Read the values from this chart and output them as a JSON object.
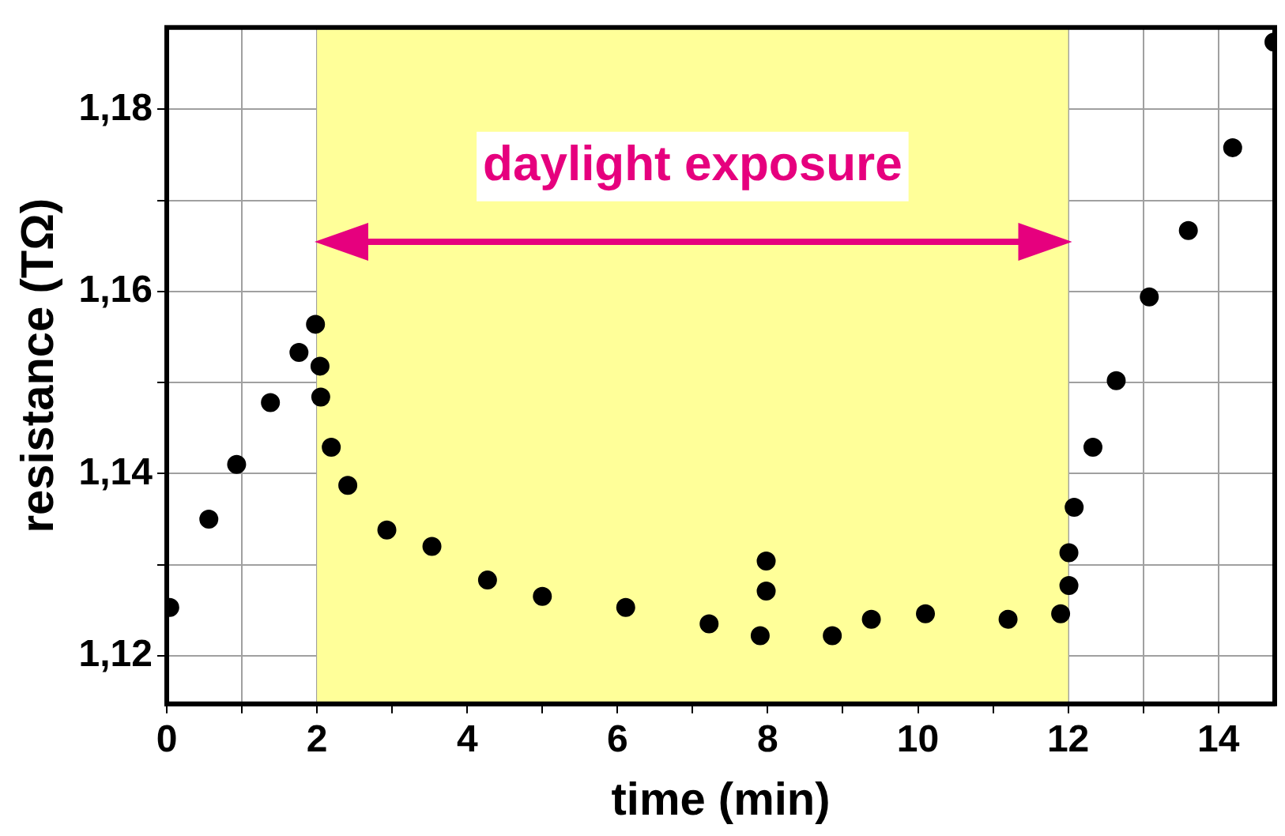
{
  "chart_data": {
    "type": "scatter",
    "xlabel": "time (min)",
    "ylabel": "resistance (TΩ)",
    "xlim": [
      0,
      14.75
    ],
    "ylim": [
      1.1147,
      1.189
    ],
    "xticks": [
      0,
      {
        "value": 1,
        "label": null
      },
      2,
      {
        "value": 3,
        "label": null
      },
      4,
      {
        "value": 5,
        "label": null
      },
      6,
      {
        "value": 7,
        "label": null
      },
      8,
      {
        "value": 9,
        "label": null
      },
      10,
      {
        "value": 11,
        "label": null
      },
      12,
      {
        "value": 13,
        "label": null
      },
      14
    ],
    "yticks": [
      {
        "value": 1.12,
        "label": "1,12"
      },
      {
        "value": 1.13,
        "label": null
      },
      {
        "value": 1.14,
        "label": "1,14"
      },
      {
        "value": 1.15,
        "label": null
      },
      {
        "value": 1.16,
        "label": "1,16"
      },
      {
        "value": 1.17,
        "label": null
      },
      {
        "value": 1.18,
        "label": "1,18"
      }
    ],
    "grid": true,
    "marker": "circle",
    "legend": false,
    "bands": [
      {
        "axis": "x",
        "from": 2,
        "to": 12,
        "label": "daylight exposure",
        "color": "#ffff99"
      }
    ],
    "series": [
      {
        "color": "#000000",
        "x": [
          0.04,
          0.56,
          0.93,
          1.38,
          1.76,
          1.98,
          2.04,
          2.05,
          2.19,
          2.41,
          2.93,
          3.53,
          4.27,
          5.0,
          6.11,
          7.22,
          7.9,
          7.98,
          7.98,
          8.86,
          9.38,
          10.1,
          11.2,
          11.9,
          12.01,
          12.01,
          12.08,
          12.33,
          12.64,
          13.08,
          13.6,
          14.19,
          14.74
        ],
        "values": [
          1.1253,
          1.135,
          1.141,
          1.1478,
          1.1533,
          1.1564,
          1.1518,
          1.1484,
          1.1429,
          1.1387,
          1.1338,
          1.132,
          1.1283,
          1.1265,
          1.1253,
          1.1235,
          1.1222,
          1.1304,
          1.1271,
          1.1222,
          1.124,
          1.1246,
          1.124,
          1.1246,
          1.1277,
          1.1313,
          1.1363,
          1.1429,
          1.1502,
          1.1594,
          1.1667,
          1.1758,
          1.1874
        ]
      }
    ]
  }
}
